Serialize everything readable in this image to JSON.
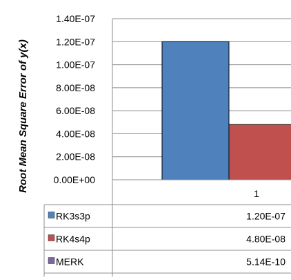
{
  "chart_data": {
    "type": "bar",
    "ylabel": "Root Mean Square Error of y(x)",
    "categories": [
      "1"
    ],
    "ylim": [
      0,
      1.4e-07
    ],
    "y_ticks": [
      0,
      2e-08,
      4e-08,
      6e-08,
      8e-08,
      1e-07,
      1.2e-07,
      1.4e-07
    ],
    "y_tick_labels": [
      "0.00E+00",
      "2.00E-08",
      "4.00E-08",
      "6.00E-08",
      "8.00E-08",
      "1.00E-07",
      "1.20E-07",
      "1.40E-07"
    ],
    "grid": true,
    "legend": "data-table",
    "series": [
      {
        "name": "RK3s3p",
        "values": [
          1.2e-07
        ],
        "value_labels": [
          "1.20E-07"
        ],
        "color": "#4F81BD"
      },
      {
        "name": "RK4s4p",
        "values": [
          4.8e-08
        ],
        "value_labels": [
          "4.80E-08"
        ],
        "color": "#C0504D"
      },
      {
        "name": "MERK",
        "values": [
          5.14e-10
        ],
        "value_labels": [
          "5.14E-10"
        ],
        "color": "#8064A2"
      }
    ]
  }
}
